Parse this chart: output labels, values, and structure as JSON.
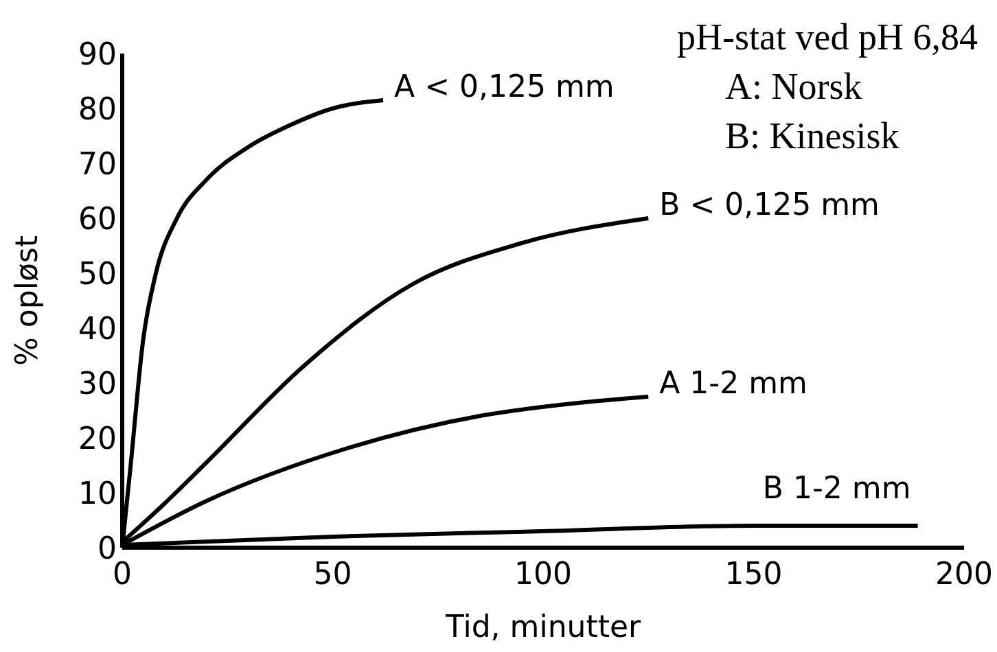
{
  "chart_data": {
    "type": "line",
    "xlabel": "Tid, minutter",
    "ylabel": "% opløst",
    "xlim": [
      0,
      200
    ],
    "ylim": [
      0,
      90
    ],
    "xticks": [
      0,
      50,
      100,
      150,
      200
    ],
    "yticks": [
      0,
      10,
      20,
      30,
      40,
      50,
      60,
      70,
      80,
      90
    ],
    "grid": false,
    "legend": false,
    "marker": "none",
    "line_style": "solid",
    "annotations": [
      "pH-stat ved pH 6,84",
      "A: Norsk",
      "B: Kinesisk"
    ],
    "series": [
      {
        "name": "A < 0,125 mm",
        "color": "#000000",
        "x": [
          0,
          2,
          5,
          8,
          13,
          20,
          30,
          40,
          50,
          62
        ],
        "values": [
          0,
          15,
          38,
          50,
          60,
          67,
          73,
          77,
          80,
          81.5
        ]
      },
      {
        "name": "B < 0,125 mm",
        "color": "#000000",
        "x": [
          0,
          10,
          20,
          43,
          69,
          95,
          125
        ],
        "values": [
          1,
          8,
          15.5,
          33,
          48,
          55.5,
          60
        ]
      },
      {
        "name": "A 1-2 mm",
        "color": "#000000",
        "x": [
          0,
          20,
          53,
          85,
          110,
          125
        ],
        "values": [
          0.5,
          8.5,
          18,
          24,
          26.5,
          27.5
        ]
      },
      {
        "name": "B 1-2 mm",
        "color": "#000000",
        "x": [
          0,
          50,
          100,
          150,
          189
        ],
        "values": [
          0.5,
          2,
          3,
          4,
          4
        ]
      }
    ]
  }
}
